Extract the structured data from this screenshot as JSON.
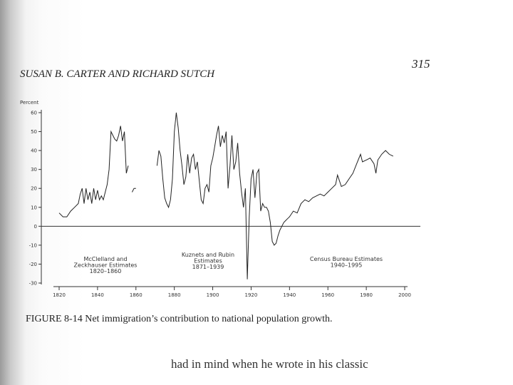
{
  "header": {
    "running_title": "SUSAN B. CARTER AND RICHARD SUTCH",
    "page_number": "315"
  },
  "chart_data": {
    "type": "line",
    "y_label": "Percent",
    "color": "#222222",
    "x": [
      1820,
      1822,
      1824,
      1826,
      1828,
      1830,
      1831,
      1832,
      1833,
      1834,
      1835,
      1836,
      1837,
      1838,
      1839,
      1840,
      1841,
      1842,
      1843,
      1844,
      1845,
      1846,
      1847,
      1848,
      1849,
      1850,
      1851,
      1852,
      1853,
      1854,
      1855,
      1856,
      1857,
      1858,
      1859,
      1860,
      1865,
      1871,
      1872,
      1873,
      1874,
      1875,
      1876,
      1877,
      1878,
      1879,
      1880,
      1881,
      1882,
      1883,
      1884,
      1885,
      1886,
      1887,
      1888,
      1889,
      1890,
      1891,
      1892,
      1893,
      1894,
      1895,
      1896,
      1897,
      1898,
      1899,
      1900,
      1901,
      1902,
      1903,
      1904,
      1905,
      1906,
      1907,
      1908,
      1909,
      1910,
      1911,
      1912,
      1913,
      1914,
      1915,
      1916,
      1917,
      1918,
      1919,
      1920,
      1921,
      1922,
      1923,
      1924,
      1925,
      1926,
      1927,
      1928,
      1929,
      1930,
      1931,
      1932,
      1933,
      1934,
      1935,
      1936,
      1937,
      1938,
      1939,
      1940,
      1942,
      1944,
      1946,
      1948,
      1950,
      1952,
      1954,
      1956,
      1958,
      1960,
      1962,
      1964,
      1965,
      1967,
      1969,
      1971,
      1973,
      1975,
      1977,
      1978,
      1980,
      1982,
      1984,
      1985,
      1986,
      1988,
      1990,
      1992,
      1994
    ],
    "values": [
      7,
      5,
      5,
      8,
      10,
      12,
      17,
      20,
      12,
      20,
      14,
      18,
      12,
      20,
      14,
      19,
      14,
      16,
      14,
      18,
      22,
      30,
      50,
      48,
      46,
      45,
      48,
      53,
      45,
      50,
      28,
      32,
      null,
      18,
      20,
      20,
      null,
      32,
      40,
      37,
      25,
      15,
      12,
      10,
      14,
      25,
      50,
      60,
      52,
      40,
      32,
      22,
      26,
      38,
      28,
      36,
      38,
      30,
      34,
      24,
      14,
      12,
      20,
      22,
      18,
      32,
      36,
      42,
      48,
      53,
      42,
      48,
      44,
      50,
      20,
      32,
      48,
      30,
      34,
      44,
      28,
      18,
      10,
      20,
      -28,
      5,
      25,
      30,
      15,
      28,
      30,
      8,
      12,
      10,
      10,
      8,
      2,
      -8,
      -10,
      -9,
      -5,
      -2,
      0,
      2,
      3,
      4,
      5,
      8,
      7,
      12,
      14,
      13,
      15,
      16,
      17,
      16,
      18,
      20,
      22,
      27,
      21,
      22,
      25,
      28,
      33,
      38,
      34,
      35,
      36,
      33,
      28,
      35,
      38,
      40,
      38,
      37
    ],
    "xlim": [
      1820,
      2000
    ],
    "xticks": [
      1820,
      1840,
      1860,
      1880,
      1900,
      1920,
      1940,
      1960,
      1980,
      2000
    ],
    "ylim": [
      -30,
      60
    ],
    "yticks": [
      -30,
      -20,
      -10,
      0,
      10,
      20,
      30,
      40,
      50,
      60
    ],
    "annotations": [
      [
        "McClelland and",
        "Zeckhauser Estimates",
        "1820–1860"
      ],
      [
        "Kuznets and Rubin",
        "Estimates",
        "1871–1939"
      ],
      [
        "Census Bureau Estimates",
        "1940–1995"
      ]
    ]
  },
  "caption": "FIGURE 8-14 Net immigration’s contribution to national population growth.",
  "body_text": "had in mind when he wrote in his classic"
}
